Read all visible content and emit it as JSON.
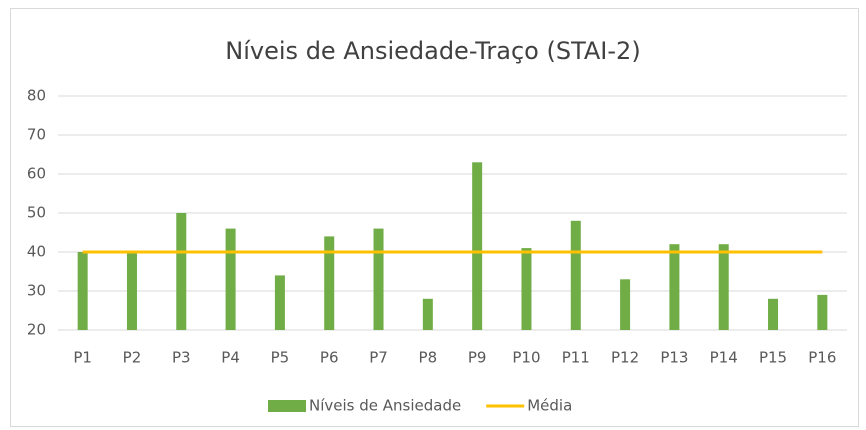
{
  "chart_data": {
    "type": "bar",
    "title": "Níveis de Ansiedade-Traço (STAI-2)",
    "categories": [
      "P1",
      "P2",
      "P3",
      "P4",
      "P5",
      "P6",
      "P7",
      "P8",
      "P9",
      "P10",
      "P11",
      "P12",
      "P13",
      "P14",
      "P15",
      "P16"
    ],
    "series": [
      {
        "name": "Níveis de Ansiedade",
        "type": "bar",
        "color": "#70ad47",
        "values": [
          40,
          40,
          50,
          46,
          34,
          44,
          46,
          28,
          63,
          41,
          48,
          33,
          42,
          42,
          28,
          29
        ]
      },
      {
        "name": "Média",
        "type": "line",
        "color": "#ffc000",
        "values": [
          40,
          40,
          40,
          40,
          40,
          40,
          40,
          40,
          40,
          40,
          40,
          40,
          40,
          40,
          40,
          40
        ]
      }
    ],
    "ylim": [
      20,
      80
    ],
    "yticks": [
      20,
      30,
      40,
      50,
      60,
      70,
      80
    ],
    "grid": true,
    "legend": "bottom"
  }
}
